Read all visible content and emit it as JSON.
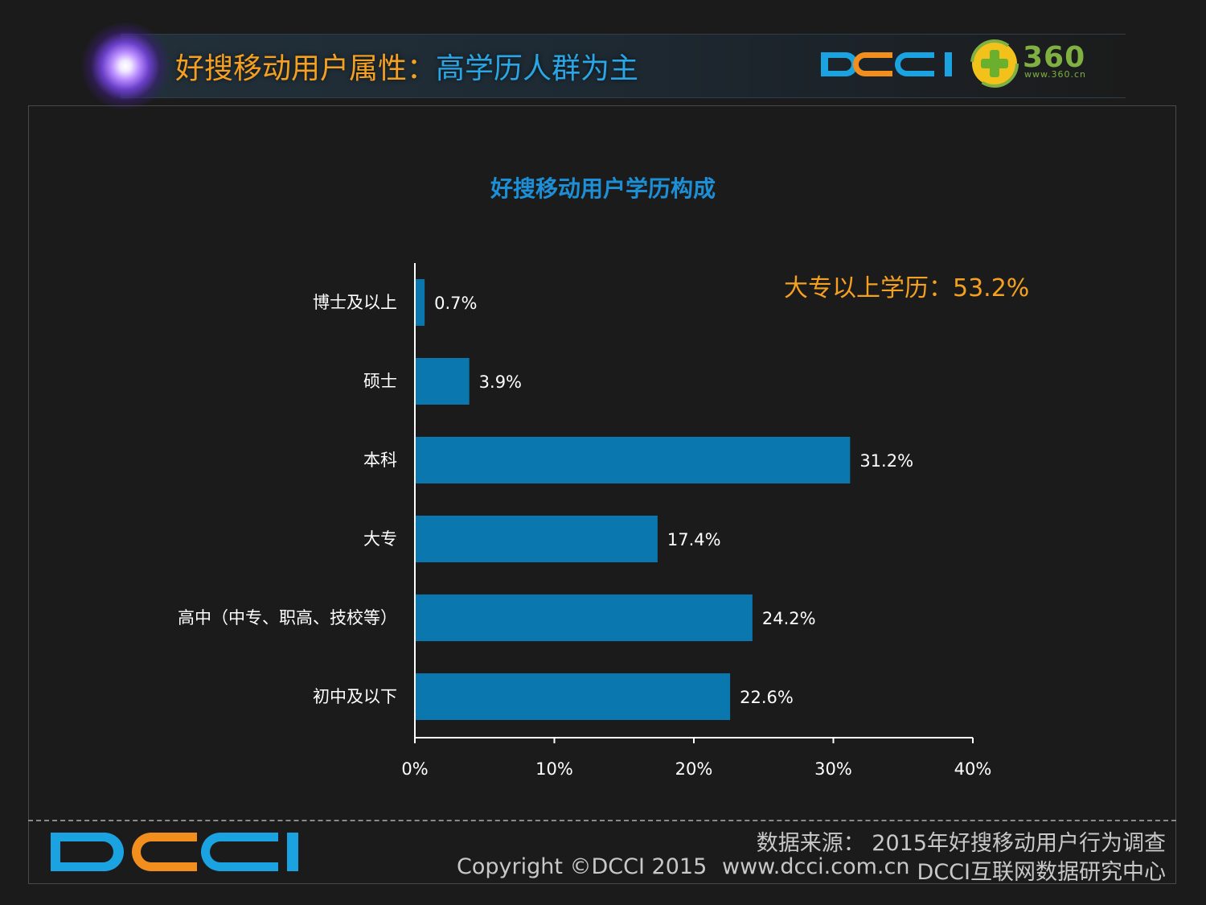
{
  "header": {
    "title_part1": "好搜移动用户属性：",
    "title_part2": "高学历人群为主",
    "logo_text": "DCCI",
    "partner_brand": "360",
    "partner_url": "www.360.cn",
    "icons": [
      "star-burst-icon",
      "dcci-logo-icon",
      "360-logo-icon"
    ]
  },
  "chart_data": {
    "type": "bar",
    "orientation": "horizontal",
    "title": "好搜移动用户学历构成",
    "annotation": "大专以上学历：53.2%",
    "categories": [
      "博士及以上",
      "硕士",
      "本科",
      "大专",
      "高中（中专、职高、技校等）",
      "初中及以下"
    ],
    "values": [
      0.7,
      3.9,
      31.2,
      17.4,
      24.2,
      22.6
    ],
    "value_labels": [
      "0.7%",
      "3.9%",
      "31.2%",
      "17.4%",
      "24.2%",
      "22.6%"
    ],
    "xlim": [
      0,
      40
    ],
    "xticks": [
      0,
      10,
      20,
      30,
      40
    ],
    "xtick_labels": [
      "0%",
      "10%",
      "20%",
      "30%",
      "40%"
    ],
    "grid": false,
    "legend": "none",
    "bar_color": "#0a77ae"
  },
  "footer": {
    "source": "数据来源： 2015年好搜移动用户行为调查",
    "copyright": "Copyright ©DCCI 2015",
    "url": "www.dcci.com.cn",
    "org": "DCCI互联网数据研究中心"
  },
  "colors": {
    "background": "#1b1b1b",
    "title_orange": "#f5a021",
    "title_blue": "#2aa6e6",
    "chart_title_blue": "#1d8fd6",
    "bar_blue": "#0a77ae",
    "dcci_blue": "#1aa3e0",
    "dcci_orange": "#f28e1e",
    "brand_green": "#7fb041"
  }
}
